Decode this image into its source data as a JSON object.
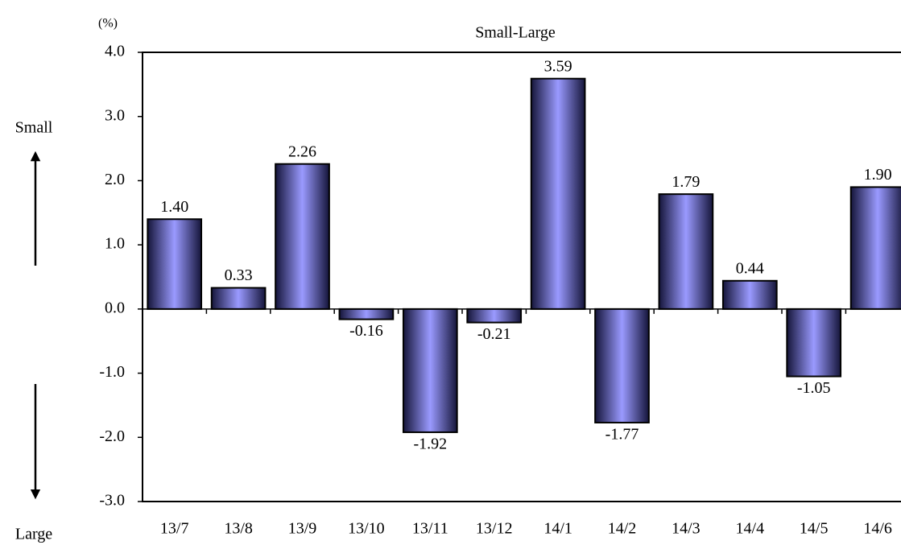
{
  "chart_data": {
    "type": "bar",
    "title": "Small-Large",
    "y_label": "(%)",
    "annotations": {
      "up": "Small",
      "down": "Large"
    },
    "categories": [
      "13/7",
      "13/8",
      "13/9",
      "13/10",
      "13/11",
      "13/12",
      "14/1",
      "14/2",
      "14/3",
      "14/4",
      "14/5",
      "14/6"
    ],
    "values": [
      1.4,
      0.33,
      2.26,
      -0.16,
      -1.92,
      -0.21,
      3.59,
      -1.77,
      1.79,
      0.44,
      -1.05,
      1.9
    ],
    "value_labels": [
      "1.40",
      "0.33",
      "2.26",
      "-0.16",
      "-1.92",
      "-0.21",
      "3.59",
      "-1.77",
      "1.79",
      "0.44",
      "-1.05",
      "1.90"
    ],
    "color": "#9a9aff",
    "ylim": [
      -3,
      4
    ],
    "yticks": [
      {
        "value": -3,
        "label": "-3.0"
      },
      {
        "value": -2,
        "label": "-2.0"
      },
      {
        "value": -1,
        "label": "-1.0"
      },
      {
        "value": 0,
        "label": "0.0"
      },
      {
        "value": 1,
        "label": "1.0"
      },
      {
        "value": 2,
        "label": "2.0"
      },
      {
        "value": 3,
        "label": "3.0"
      },
      {
        "value": 4,
        "label": "4.0"
      }
    ],
    "grid": false
  }
}
